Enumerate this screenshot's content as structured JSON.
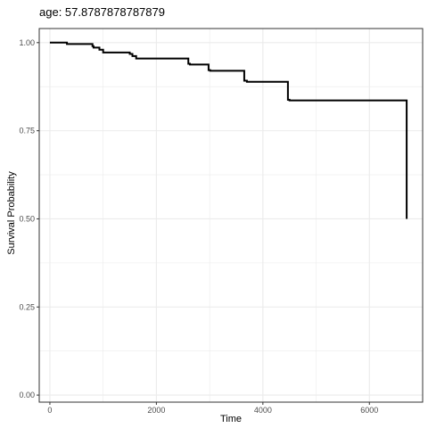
{
  "chart_data": {
    "type": "line",
    "title": "age: 57.8787878787879",
    "xlabel": "Time",
    "ylabel": "Survival Probability",
    "xlim": [
      -200,
      7000
    ],
    "ylim": [
      -0.02,
      1.04
    ],
    "x_ticks": [
      0,
      2000,
      4000,
      6000
    ],
    "x_tick_labels": [
      "0",
      "2000",
      "4000",
      "6000"
    ],
    "y_ticks": [
      0,
      0.25,
      0.5,
      0.75,
      1
    ],
    "y_tick_labels": [
      "0.00",
      "0.25",
      "0.50",
      "0.75",
      "1.00"
    ],
    "grid": true,
    "line_color": "#000000",
    "grid_color": "#ebebeb",
    "series": [
      {
        "step": "post",
        "x": [
          0,
          300,
          320,
          780,
          800,
          820,
          930,
          1000,
          1500,
          1550,
          1620,
          2600,
          2630,
          2980,
          3010,
          3650,
          3700,
          4470,
          4500,
          6700
        ],
        "y": [
          1.0,
          1.0,
          0.996,
          0.996,
          0.99,
          0.986,
          0.98,
          0.972,
          0.968,
          0.962,
          0.955,
          0.94,
          0.938,
          0.922,
          0.92,
          0.892,
          0.889,
          0.838,
          0.836,
          0.5
        ]
      }
    ]
  }
}
